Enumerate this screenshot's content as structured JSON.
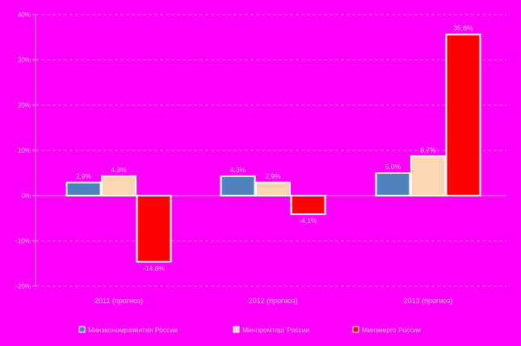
{
  "chart_data": {
    "type": "bar",
    "categories": [
      "2011 (прогноз)",
      "2012 (прогноз)",
      "2013 (прогноз)"
    ],
    "series": [
      {
        "name": "Минэкономразвития России",
        "values": [
          2.9,
          4.3,
          5.0
        ],
        "labels": [
          "2,9%",
          "4,3%",
          "5,0%"
        ],
        "color": "#4f81bd"
      },
      {
        "name": "Минпромторг России",
        "values": [
          4.3,
          2.9,
          8.7
        ],
        "labels": [
          "4,3%",
          "2,9%",
          "8,7%"
        ],
        "color": "#fcd5b5"
      },
      {
        "name": "Минэнерго России",
        "values": [
          -14.6,
          -4.1,
          35.6
        ],
        "labels": [
          "-14,6%",
          "-4,1%",
          "35,6%"
        ],
        "color": "#ff0000"
      }
    ],
    "y_ticks": [
      {
        "value": 40,
        "label": "40%"
      },
      {
        "value": 30,
        "label": "30%"
      },
      {
        "value": 20,
        "label": "20%"
      },
      {
        "value": 10,
        "label": "10%"
      },
      {
        "value": 0,
        "label": "0%"
      },
      {
        "value": -10,
        "label": "-10%"
      },
      {
        "value": -20,
        "label": "-20%"
      }
    ],
    "ylim": [
      -20,
      40
    ],
    "grid": true,
    "legend_position": "bottom"
  }
}
